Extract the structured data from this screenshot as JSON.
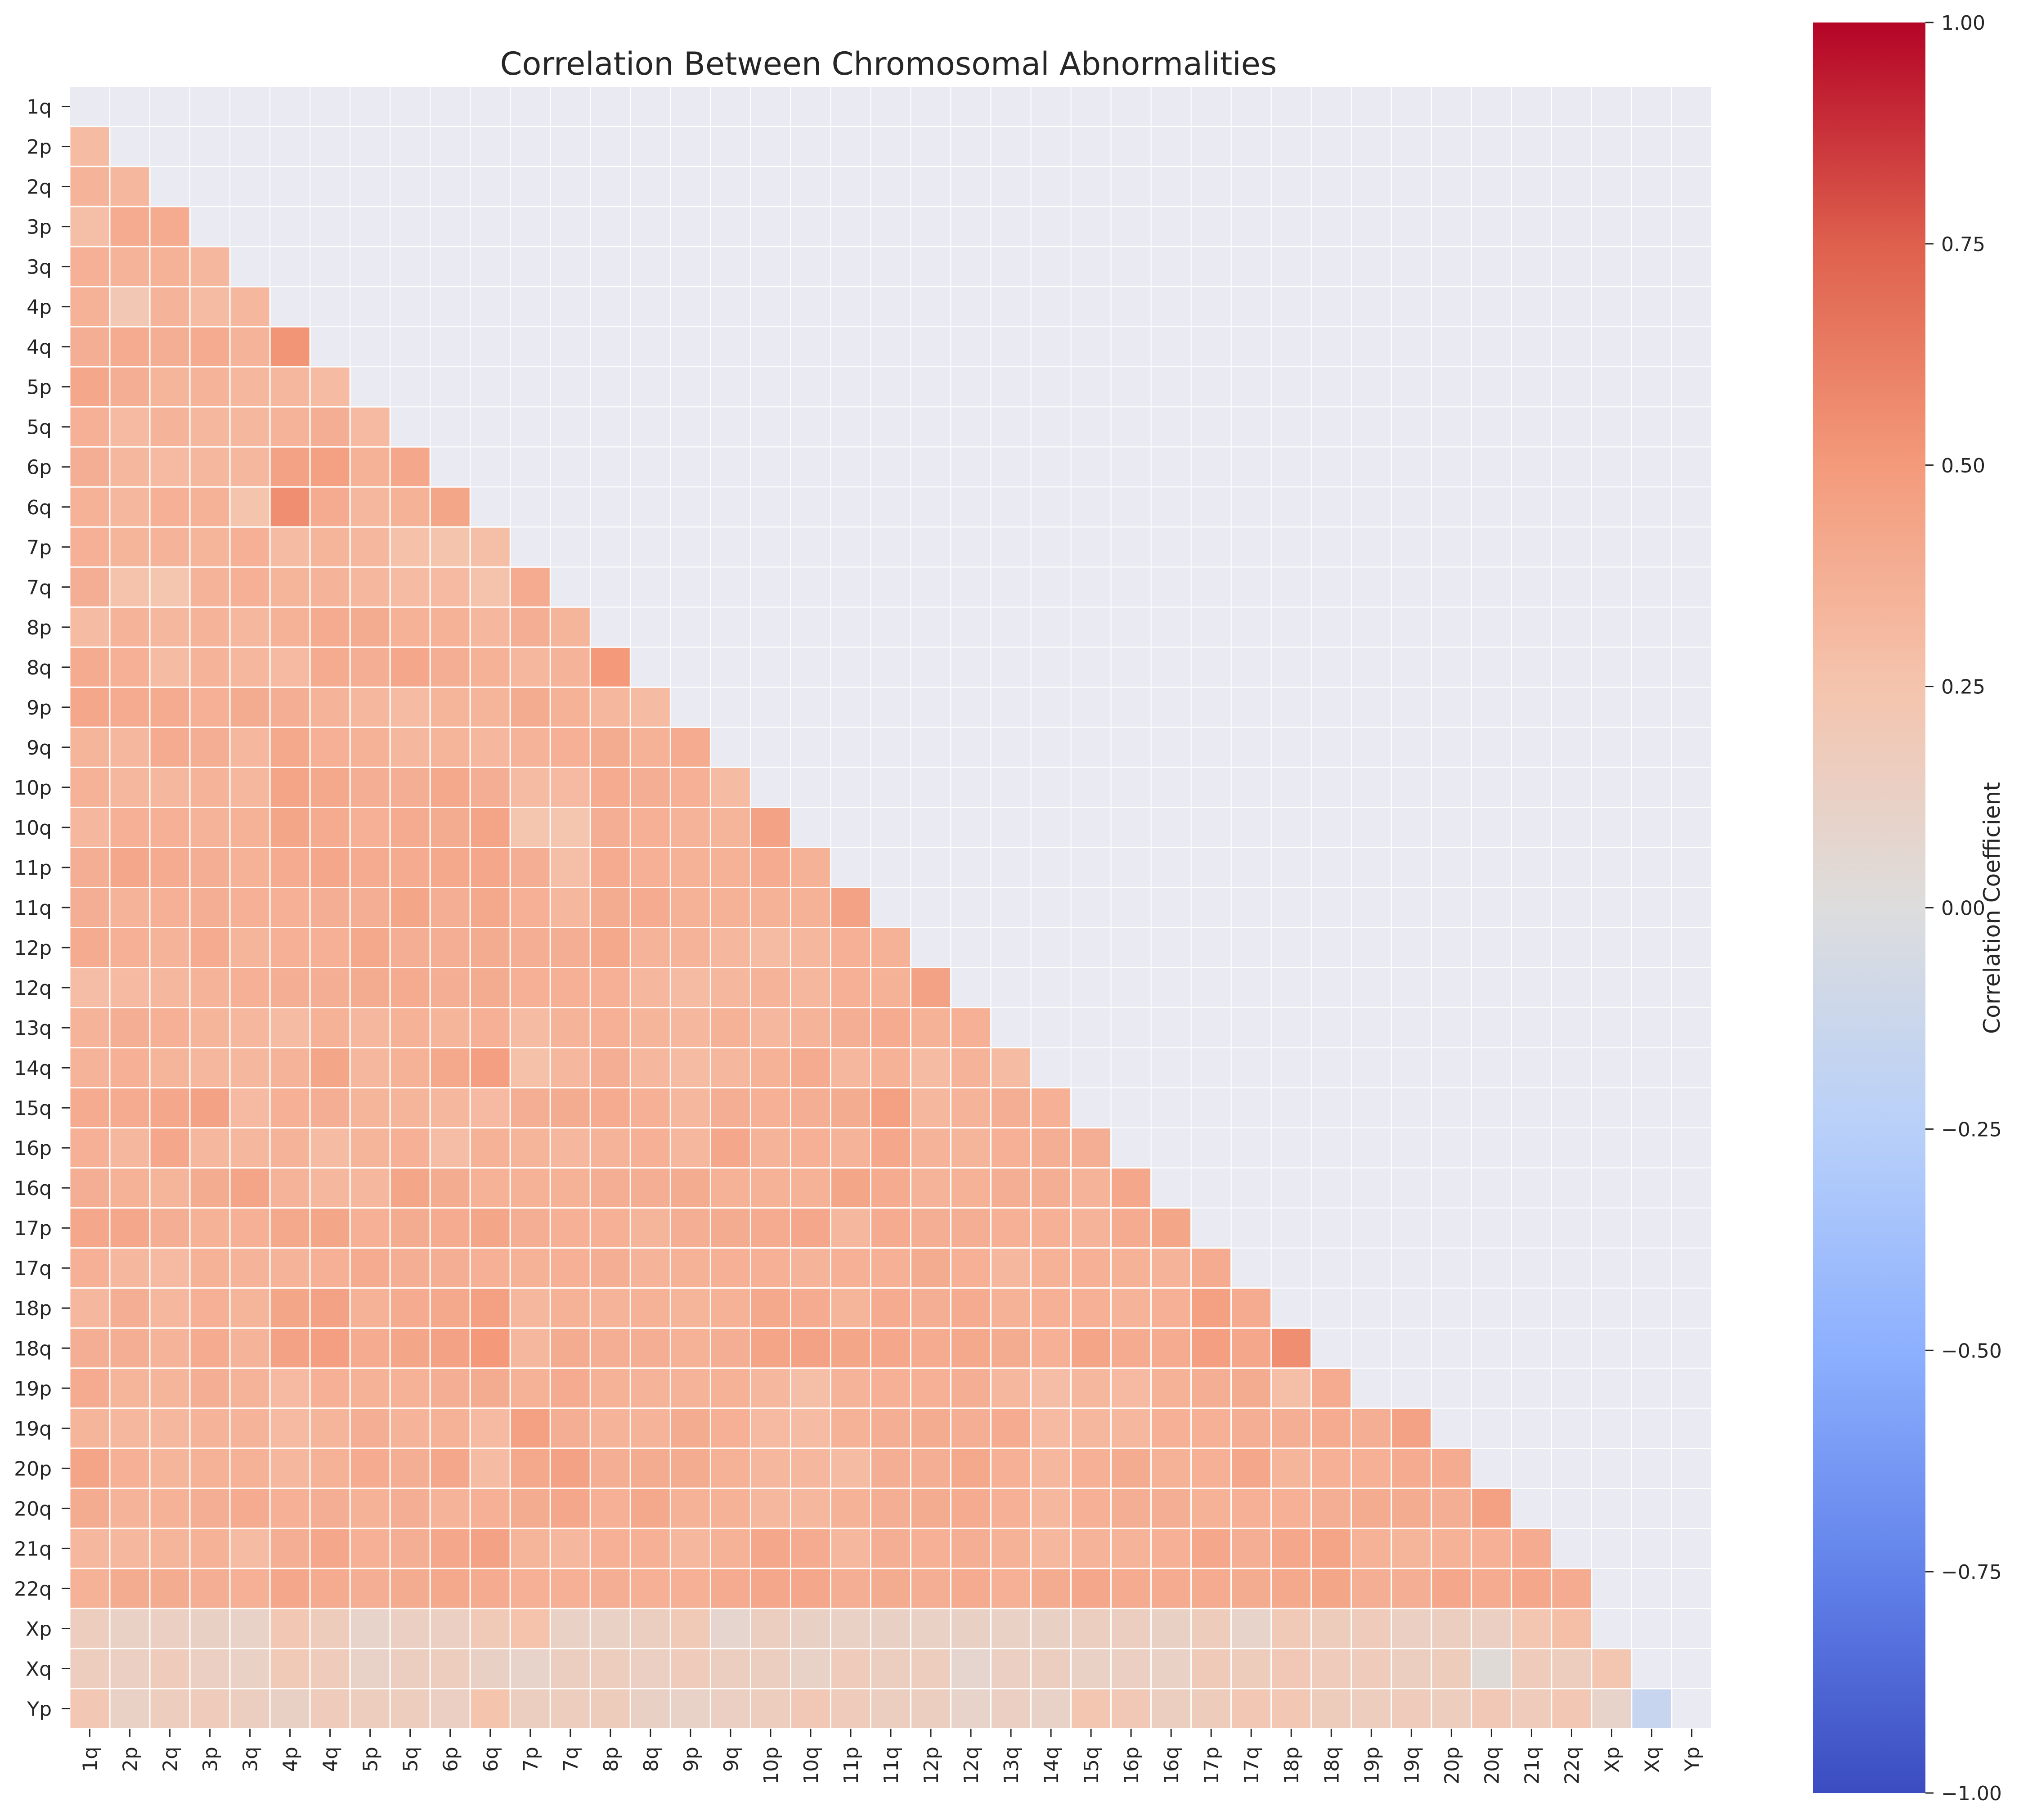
{
  "chart_data": {
    "type": "heatmap",
    "title": "Correlation Between Chromosomal Abnormalities",
    "labels": [
      "1q",
      "2p",
      "2q",
      "3p",
      "3q",
      "4p",
      "4q",
      "5p",
      "5q",
      "6p",
      "6q",
      "7p",
      "7q",
      "8p",
      "8q",
      "9p",
      "9q",
      "10p",
      "10q",
      "11p",
      "11q",
      "12p",
      "12q",
      "13q",
      "14q",
      "15q",
      "16p",
      "16q",
      "17p",
      "17q",
      "18p",
      "18q",
      "19p",
      "19q",
      "20p",
      "20q",
      "21q",
      "22q",
      "Xp",
      "Xq",
      "Yp"
    ],
    "mask": "lower-triangle (upper triangle and diagonal not shown)",
    "matrix": [
      [],
      [
        0.3
      ],
      [
        0.35,
        0.33
      ],
      [
        0.28,
        0.4,
        0.4
      ],
      [
        0.37,
        0.35,
        0.36,
        0.33
      ],
      [
        0.36,
        0.22,
        0.35,
        0.3,
        0.32
      ],
      [
        0.38,
        0.4,
        0.38,
        0.4,
        0.35,
        0.52
      ],
      [
        0.42,
        0.38,
        0.34,
        0.35,
        0.33,
        0.32,
        0.3
      ],
      [
        0.37,
        0.31,
        0.35,
        0.33,
        0.32,
        0.35,
        0.38,
        0.31
      ],
      [
        0.38,
        0.32,
        0.31,
        0.32,
        0.32,
        0.45,
        0.46,
        0.36,
        0.42
      ],
      [
        0.36,
        0.32,
        0.37,
        0.36,
        0.25,
        0.55,
        0.4,
        0.33,
        0.36,
        0.43
      ],
      [
        0.37,
        0.34,
        0.35,
        0.34,
        0.37,
        0.3,
        0.34,
        0.32,
        0.27,
        0.25,
        0.28
      ],
      [
        0.38,
        0.26,
        0.24,
        0.35,
        0.37,
        0.34,
        0.35,
        0.33,
        0.3,
        0.31,
        0.26,
        0.4
      ],
      [
        0.3,
        0.35,
        0.32,
        0.35,
        0.33,
        0.36,
        0.4,
        0.39,
        0.36,
        0.36,
        0.32,
        0.38,
        0.34
      ],
      [
        0.4,
        0.37,
        0.3,
        0.35,
        0.33,
        0.31,
        0.4,
        0.38,
        0.42,
        0.38,
        0.36,
        0.32,
        0.35,
        0.5
      ],
      [
        0.42,
        0.4,
        0.4,
        0.37,
        0.39,
        0.38,
        0.35,
        0.33,
        0.3,
        0.34,
        0.34,
        0.39,
        0.36,
        0.32,
        0.3
      ],
      [
        0.34,
        0.33,
        0.4,
        0.38,
        0.33,
        0.41,
        0.37,
        0.36,
        0.33,
        0.34,
        0.32,
        0.35,
        0.37,
        0.39,
        0.36,
        0.4
      ],
      [
        0.36,
        0.33,
        0.33,
        0.35,
        0.33,
        0.44,
        0.41,
        0.38,
        0.38,
        0.41,
        0.38,
        0.3,
        0.31,
        0.4,
        0.38,
        0.37,
        0.3
      ],
      [
        0.32,
        0.37,
        0.37,
        0.35,
        0.36,
        0.43,
        0.4,
        0.37,
        0.4,
        0.39,
        0.44,
        0.24,
        0.24,
        0.38,
        0.37,
        0.35,
        0.34,
        0.45
      ],
      [
        0.38,
        0.42,
        0.4,
        0.38,
        0.36,
        0.4,
        0.42,
        0.4,
        0.4,
        0.41,
        0.42,
        0.38,
        0.28,
        0.4,
        0.37,
        0.36,
        0.36,
        0.4,
        0.36
      ],
      [
        0.38,
        0.35,
        0.37,
        0.38,
        0.37,
        0.37,
        0.38,
        0.38,
        0.43,
        0.38,
        0.41,
        0.37,
        0.33,
        0.39,
        0.4,
        0.36,
        0.36,
        0.36,
        0.36,
        0.45
      ],
      [
        0.4,
        0.37,
        0.35,
        0.4,
        0.34,
        0.37,
        0.37,
        0.41,
        0.38,
        0.38,
        0.39,
        0.38,
        0.38,
        0.41,
        0.35,
        0.35,
        0.33,
        0.3,
        0.33,
        0.37,
        0.36
      ],
      [
        0.29,
        0.31,
        0.32,
        0.35,
        0.37,
        0.38,
        0.38,
        0.39,
        0.4,
        0.38,
        0.39,
        0.37,
        0.37,
        0.37,
        0.33,
        0.3,
        0.33,
        0.35,
        0.33,
        0.37,
        0.36,
        0.45
      ],
      [
        0.35,
        0.38,
        0.37,
        0.34,
        0.32,
        0.3,
        0.36,
        0.33,
        0.36,
        0.34,
        0.37,
        0.3,
        0.35,
        0.37,
        0.34,
        0.32,
        0.36,
        0.33,
        0.35,
        0.38,
        0.4,
        0.36,
        0.37
      ],
      [
        0.35,
        0.37,
        0.34,
        0.32,
        0.33,
        0.35,
        0.43,
        0.33,
        0.36,
        0.41,
        0.47,
        0.27,
        0.33,
        0.38,
        0.33,
        0.3,
        0.32,
        0.36,
        0.4,
        0.33,
        0.36,
        0.3,
        0.35,
        0.3
      ],
      [
        0.4,
        0.4,
        0.42,
        0.45,
        0.31,
        0.37,
        0.38,
        0.34,
        0.34,
        0.33,
        0.31,
        0.38,
        0.39,
        0.4,
        0.37,
        0.33,
        0.38,
        0.37,
        0.38,
        0.39,
        0.46,
        0.33,
        0.35,
        0.38,
        0.37
      ],
      [
        0.37,
        0.32,
        0.42,
        0.33,
        0.32,
        0.35,
        0.3,
        0.34,
        0.37,
        0.29,
        0.36,
        0.34,
        0.32,
        0.35,
        0.37,
        0.33,
        0.42,
        0.35,
        0.37,
        0.35,
        0.42,
        0.35,
        0.34,
        0.37,
        0.38,
        0.38
      ],
      [
        0.38,
        0.36,
        0.34,
        0.39,
        0.44,
        0.35,
        0.33,
        0.32,
        0.43,
        0.39,
        0.36,
        0.36,
        0.36,
        0.38,
        0.38,
        0.39,
        0.36,
        0.36,
        0.36,
        0.43,
        0.4,
        0.35,
        0.36,
        0.38,
        0.38,
        0.35,
        0.42
      ],
      [
        0.42,
        0.42,
        0.38,
        0.36,
        0.37,
        0.41,
        0.43,
        0.37,
        0.39,
        0.4,
        0.43,
        0.38,
        0.37,
        0.37,
        0.34,
        0.38,
        0.39,
        0.4,
        0.42,
        0.33,
        0.4,
        0.38,
        0.38,
        0.37,
        0.37,
        0.35,
        0.4,
        0.43
      ],
      [
        0.37,
        0.32,
        0.31,
        0.36,
        0.35,
        0.35,
        0.37,
        0.4,
        0.38,
        0.38,
        0.37,
        0.36,
        0.37,
        0.38,
        0.35,
        0.36,
        0.37,
        0.37,
        0.35,
        0.37,
        0.37,
        0.39,
        0.37,
        0.33,
        0.36,
        0.37,
        0.36,
        0.35,
        0.4
      ],
      [
        0.32,
        0.38,
        0.33,
        0.37,
        0.34,
        0.43,
        0.45,
        0.36,
        0.4,
        0.41,
        0.46,
        0.32,
        0.36,
        0.35,
        0.36,
        0.34,
        0.36,
        0.41,
        0.4,
        0.34,
        0.4,
        0.38,
        0.4,
        0.36,
        0.37,
        0.37,
        0.35,
        0.37,
        0.46,
        0.4
      ],
      [
        0.38,
        0.38,
        0.35,
        0.4,
        0.35,
        0.45,
        0.47,
        0.4,
        0.43,
        0.45,
        0.5,
        0.33,
        0.39,
        0.38,
        0.38,
        0.36,
        0.38,
        0.44,
        0.45,
        0.43,
        0.42,
        0.4,
        0.41,
        0.39,
        0.37,
        0.44,
        0.4,
        0.4,
        0.47,
        0.42,
        0.55
      ],
      [
        0.4,
        0.34,
        0.34,
        0.38,
        0.35,
        0.31,
        0.37,
        0.36,
        0.36,
        0.38,
        0.39,
        0.36,
        0.4,
        0.36,
        0.35,
        0.35,
        0.36,
        0.33,
        0.28,
        0.35,
        0.37,
        0.37,
        0.38,
        0.33,
        0.29,
        0.33,
        0.31,
        0.36,
        0.38,
        0.39,
        0.28,
        0.4
      ],
      [
        0.34,
        0.33,
        0.33,
        0.35,
        0.35,
        0.31,
        0.34,
        0.38,
        0.35,
        0.36,
        0.31,
        0.46,
        0.38,
        0.35,
        0.35,
        0.39,
        0.37,
        0.31,
        0.3,
        0.36,
        0.38,
        0.39,
        0.38,
        0.4,
        0.31,
        0.33,
        0.33,
        0.37,
        0.37,
        0.38,
        0.38,
        0.4,
        0.38,
        0.45
      ],
      [
        0.44,
        0.37,
        0.34,
        0.36,
        0.36,
        0.33,
        0.36,
        0.4,
        0.38,
        0.42,
        0.3,
        0.41,
        0.45,
        0.38,
        0.39,
        0.39,
        0.36,
        0.32,
        0.33,
        0.3,
        0.38,
        0.38,
        0.41,
        0.37,
        0.32,
        0.37,
        0.39,
        0.36,
        0.37,
        0.42,
        0.34,
        0.37,
        0.37,
        0.4,
        0.4
      ],
      [
        0.39,
        0.35,
        0.36,
        0.38,
        0.4,
        0.37,
        0.38,
        0.36,
        0.38,
        0.35,
        0.37,
        0.39,
        0.42,
        0.37,
        0.41,
        0.36,
        0.36,
        0.32,
        0.32,
        0.36,
        0.38,
        0.39,
        0.4,
        0.37,
        0.32,
        0.37,
        0.38,
        0.38,
        0.36,
        0.37,
        0.37,
        0.38,
        0.39,
        0.39,
        0.38,
        0.46
      ],
      [
        0.33,
        0.32,
        0.34,
        0.36,
        0.3,
        0.38,
        0.42,
        0.37,
        0.38,
        0.42,
        0.45,
        0.34,
        0.33,
        0.37,
        0.37,
        0.33,
        0.36,
        0.42,
        0.4,
        0.33,
        0.38,
        0.37,
        0.38,
        0.36,
        0.33,
        0.35,
        0.35,
        0.37,
        0.42,
        0.38,
        0.42,
        0.44,
        0.36,
        0.34,
        0.36,
        0.37,
        0.4
      ],
      [
        0.36,
        0.39,
        0.39,
        0.38,
        0.37,
        0.42,
        0.4,
        0.38,
        0.39,
        0.41,
        0.4,
        0.37,
        0.37,
        0.38,
        0.37,
        0.37,
        0.4,
        0.42,
        0.42,
        0.38,
        0.39,
        0.38,
        0.4,
        0.37,
        0.39,
        0.42,
        0.4,
        0.4,
        0.4,
        0.39,
        0.41,
        0.43,
        0.38,
        0.38,
        0.42,
        0.4,
        0.42,
        0.4
      ],
      [
        0.16,
        0.12,
        0.14,
        0.13,
        0.11,
        0.22,
        0.17,
        0.1,
        0.14,
        0.14,
        0.2,
        0.26,
        0.12,
        0.12,
        0.15,
        0.2,
        0.08,
        0.15,
        0.13,
        0.12,
        0.13,
        0.12,
        0.13,
        0.12,
        0.13,
        0.15,
        0.15,
        0.13,
        0.17,
        0.1,
        0.2,
        0.17,
        0.18,
        0.14,
        0.15,
        0.14,
        0.23,
        0.28
      ],
      [
        0.16,
        0.14,
        0.18,
        0.14,
        0.12,
        0.2,
        0.18,
        0.11,
        0.15,
        0.16,
        0.13,
        0.1,
        0.15,
        0.16,
        0.14,
        0.18,
        0.15,
        0.15,
        0.11,
        0.18,
        0.15,
        0.16,
        0.08,
        0.14,
        0.15,
        0.12,
        0.14,
        0.12,
        0.19,
        0.17,
        0.21,
        0.18,
        0.18,
        0.15,
        0.17,
        0.03,
        0.18,
        0.16,
        0.23
      ],
      [
        0.22,
        0.12,
        0.16,
        0.18,
        0.15,
        0.13,
        0.18,
        0.16,
        0.16,
        0.14,
        0.25,
        0.15,
        0.16,
        0.17,
        0.13,
        0.11,
        0.14,
        0.16,
        0.21,
        0.18,
        0.15,
        0.15,
        0.1,
        0.14,
        0.11,
        0.23,
        0.21,
        0.15,
        0.17,
        0.22,
        0.22,
        0.17,
        0.16,
        0.18,
        0.16,
        0.21,
        0.18,
        0.22,
        0.1,
        -0.15
      ]
    ],
    "colorbar": {
      "label": "Correlation Coefficient",
      "vmin": -1.0,
      "vmax": 1.0,
      "ticks": [
        "1.00",
        "0.75",
        "0.50",
        "0.25",
        "0.00",
        "−0.25",
        "−0.50",
        "−0.75",
        "−1.00"
      ],
      "tick_values": [
        1.0,
        0.75,
        0.5,
        0.25,
        0.0,
        -0.25,
        -0.5,
        -0.75,
        -1.0
      ],
      "colormap": "coolwarm"
    },
    "colors": {
      "background": "#eaeaf2",
      "grid_line": "#ffffff",
      "text": "#262626"
    }
  }
}
